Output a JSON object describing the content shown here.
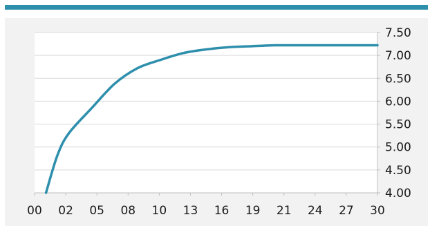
{
  "chart_data": {
    "type": "line",
    "title": "",
    "xlabel": "",
    "ylabel": "",
    "x_ticks": [
      "00",
      "02",
      "05",
      "08",
      "10",
      "13",
      "16",
      "19",
      "21",
      "24",
      "27",
      "30"
    ],
    "y_ticks": [
      "4.00",
      "4.50",
      "5.00",
      "5.50",
      "6.00",
      "6.50",
      "7.00",
      "7.50"
    ],
    "xlim": [
      0,
      30
    ],
    "ylim": [
      4.0,
      7.5
    ],
    "grid": "horizontal",
    "y_axis_side": "right",
    "series": [
      {
        "name": "",
        "color": "#2e8fad",
        "x": [
          1,
          2,
          3,
          5,
          7,
          9,
          11,
          13,
          15,
          17,
          19,
          21,
          23,
          25,
          27,
          30
        ],
        "y": [
          4.0,
          4.82,
          5.3,
          5.85,
          6.38,
          6.72,
          6.9,
          7.05,
          7.13,
          7.18,
          7.2,
          7.22,
          7.22,
          7.22,
          7.22,
          7.22
        ]
      }
    ]
  }
}
